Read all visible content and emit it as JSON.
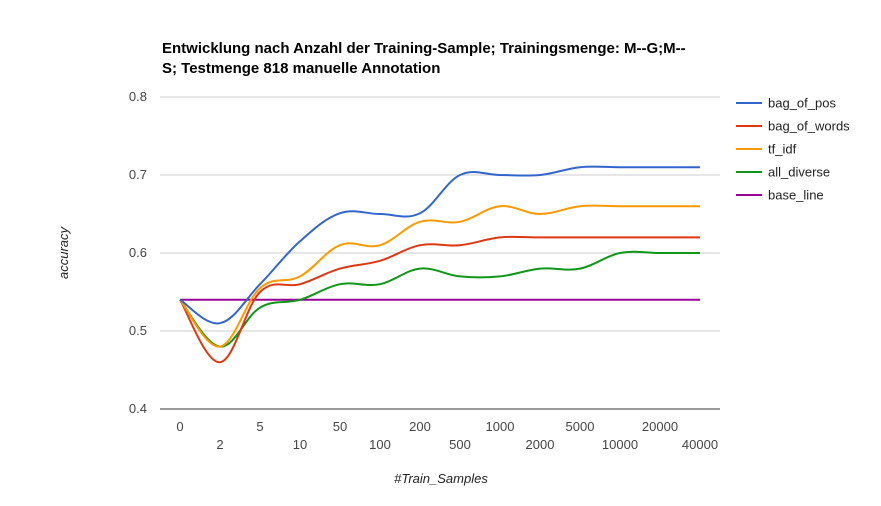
{
  "chart_data": {
    "type": "line",
    "title_lines": [
      "Entwicklung nach Anzahl der Training-Sample; Trainingsmenge: M--G;M--",
      "S; Testmenge 818 manuelle Annotation"
    ],
    "xlabel": "#Train_Samples",
    "ylabel": "accuracy",
    "ylim": [
      0.4,
      0.8
    ],
    "yticks": [
      "0.4",
      "0.5",
      "0.6",
      "0.7",
      "0.8"
    ],
    "grid": true,
    "legend_position": "right",
    "categories": [
      "0",
      "2",
      "5",
      "10",
      "50",
      "100",
      "200",
      "500",
      "1000",
      "2000",
      "5000",
      "10000",
      "20000",
      "40000"
    ],
    "series": [
      {
        "name": "bag_of_pos",
        "color": "#3366cc",
        "values": [
          0.54,
          0.51,
          0.56,
          0.615,
          0.651,
          0.65,
          0.651,
          0.7,
          0.7,
          0.7,
          0.71,
          0.71,
          0.71,
          0.71
        ]
      },
      {
        "name": "bag_of_words",
        "color": "#dc3912",
        "values": [
          0.54,
          0.46,
          0.55,
          0.56,
          0.58,
          0.59,
          0.61,
          0.61,
          0.62,
          0.62,
          0.62,
          0.62,
          0.62,
          0.62
        ]
      },
      {
        "name": "tf_idf",
        "color": "#ff9900",
        "values": [
          0.54,
          0.48,
          0.555,
          0.57,
          0.61,
          0.61,
          0.64,
          0.64,
          0.66,
          0.65,
          0.66,
          0.66,
          0.66,
          0.66
        ]
      },
      {
        "name": "all_diverse",
        "color": "#109618",
        "values": [
          0.54,
          0.48,
          0.53,
          0.54,
          0.56,
          0.56,
          0.58,
          0.57,
          0.57,
          0.58,
          0.58,
          0.6,
          0.6,
          0.6
        ]
      },
      {
        "name": "base_line",
        "color": "#990099",
        "values": [
          0.54,
          0.54,
          0.54,
          0.54,
          0.54,
          0.54,
          0.54,
          0.54,
          0.54,
          0.54,
          0.54,
          0.54,
          0.54,
          0.54
        ]
      }
    ]
  }
}
